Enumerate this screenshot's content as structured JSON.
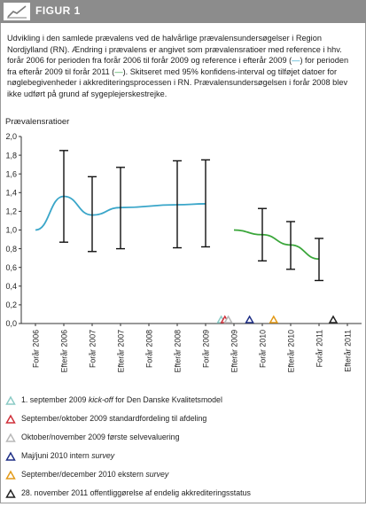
{
  "header": {
    "title": "FIGUR 1"
  },
  "caption": {
    "part1": "Udvikling i den samlede prævalens ved de halvårlige prævalensundersøgelser i Region Nordjylland (RN). Ændring i prævalens er angivet som prævalensratioer med reference i hhv. forår 2006 for perioden fra forår 2006 til forår 2009 og reference i efterår 2009 (",
    "box_blue": "—",
    "part2": ") for perioden fra efterår 2009 til forår 2011 (",
    "box_green": "—",
    "part3": "). Skitseret med 95% konfidens-interval og tilføjet datoer for nøglebegivenheder i akkrediteringsprocessen i RN. Prævalensundersøgelsen i forår 2008 blev ikke udført på grund af sygeplejerskestrejke."
  },
  "chart_data": {
    "type": "line",
    "ylabel": "Prævalensratioer",
    "ylim": [
      0,
      2.0
    ],
    "yticks": [
      "0,0",
      "0,2",
      "0,4",
      "0,6",
      "0,8",
      "1,0",
      "1,2",
      "1,4",
      "1,6",
      "1,8",
      "2,0"
    ],
    "categories": [
      "Forår 2006",
      "Efterår 2006",
      "Forår 2007",
      "Efterår 2007",
      "Forår 2008",
      "Efterår 2008",
      "Forår 2009",
      "Efterår 2009",
      "Forår 2010",
      "Efterår 2010",
      "Forår 2011",
      "Efterår 2011"
    ],
    "series": [
      {
        "color": "#3aa6c9",
        "points": [
          {
            "x": "Forår 2006",
            "y": 1.0
          },
          {
            "x": "Efterår 2006",
            "y": 1.36,
            "low": 0.87,
            "high": 1.85
          },
          {
            "x": "Forår 2007",
            "y": 1.16,
            "low": 0.77,
            "high": 1.57
          },
          {
            "x": "Efterår 2007",
            "y": 1.24,
            "low": 0.8,
            "high": 1.67
          },
          {
            "x": "Efterår 2008",
            "y": 1.27,
            "low": 0.81,
            "high": 1.74
          },
          {
            "x": "Forår 2009",
            "y": 1.28,
            "low": 0.82,
            "high": 1.75
          }
        ]
      },
      {
        "color": "#3aa63a",
        "points": [
          {
            "x": "Efterår 2009",
            "y": 1.0
          },
          {
            "x": "Forår 2010",
            "y": 0.95,
            "low": 0.67,
            "high": 1.23
          },
          {
            "x": "Efterår 2010",
            "y": 0.84,
            "low": 0.58,
            "high": 1.09
          },
          {
            "x": "Forår 2011",
            "y": 0.69,
            "low": 0.46,
            "high": 0.91
          }
        ]
      }
    ],
    "events": [
      {
        "color": "#8ccbc6",
        "x": 6.55
      },
      {
        "color": "#d0303a",
        "x": 6.68
      },
      {
        "color": "#b8b8b8",
        "x": 6.8
      },
      {
        "color": "#1f2f86",
        "x": 7.55
      },
      {
        "color": "#e39a18",
        "x": 8.4
      },
      {
        "color": "#222222",
        "x": 10.5
      }
    ]
  },
  "legend": [
    {
      "color": "#8ccbc6",
      "text": "1. september 2009 ",
      "italic": "kick-off",
      "rest": " for Den Danske Kvalitetsmodel"
    },
    {
      "color": "#d0303a",
      "text": "September/oktober 2009 standardfordeling til afdeling",
      "italic": "",
      "rest": ""
    },
    {
      "color": "#b8b8b8",
      "text": "Oktober/november 2009 første selvevaluering",
      "italic": "",
      "rest": ""
    },
    {
      "color": "#1f2f86",
      "text": "Maj/juni 2010 intern ",
      "italic": "survey",
      "rest": ""
    },
    {
      "color": "#e39a18",
      "text": "September/december 2010 ekstern ",
      "italic": "survey",
      "rest": ""
    },
    {
      "color": "#222222",
      "text": "28. november 2011 offentliggørelse af endelig akkrediteringsstatus",
      "italic": "",
      "rest": ""
    }
  ]
}
